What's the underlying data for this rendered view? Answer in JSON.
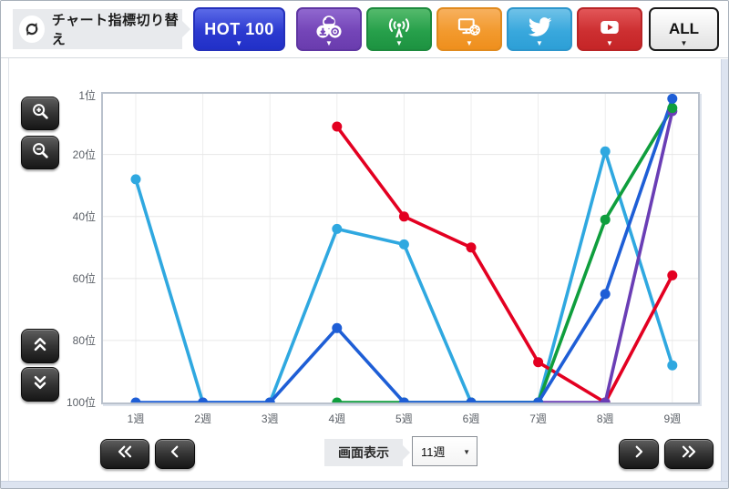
{
  "toolbar": {
    "label": "チャート指標切り替え",
    "label_icon": "switch-arrows-icon",
    "caret": "▼",
    "buttons": [
      {
        "id": "hot100",
        "label": "HOT 100",
        "color": "#2c3ad0"
      },
      {
        "id": "sales",
        "icon": "sales-bundle-icon",
        "color": "#7445b8"
      },
      {
        "id": "radio",
        "icon": "radio-tower-icon",
        "color": "#27a04b"
      },
      {
        "id": "lookup",
        "icon": "monitor-disc-icon",
        "color": "#f29a2e"
      },
      {
        "id": "twitter",
        "icon": "twitter-bird-icon",
        "color": "#39a8dd"
      },
      {
        "id": "video",
        "icon": "youtube-play-icon",
        "color": "#cd2f31"
      },
      {
        "id": "all",
        "label": "ALL",
        "color": "#eeeeee"
      }
    ]
  },
  "left_controls": {
    "zoom_in": "magnifier-plus-icon",
    "zoom_out": "magnifier-minus-icon",
    "scroll_up": "double-chevron-up-icon",
    "scroll_down": "double-chevron-down-icon"
  },
  "bottom_controls": {
    "first": "double-chevron-left-icon",
    "prev": "chevron-left-icon",
    "next": "chevron-right-icon",
    "last": "double-chevron-right-icon",
    "display_label": "画面表示",
    "display_value": "11週"
  },
  "chart_data": {
    "type": "line",
    "x_axis": "week",
    "y_axis": "chart rank (1 = best, 100 = worst)",
    "x_labels": [
      "1週",
      "2週",
      "3週",
      "4週",
      "5週",
      "6週",
      "7週",
      "8週",
      "9週"
    ],
    "y_tick_labels": [
      "1位",
      "20位",
      "40位",
      "60位",
      "80位",
      "100位"
    ],
    "y_tick_ranks": [
      1,
      20,
      40,
      60,
      80,
      100
    ],
    "ylim": [
      1,
      100
    ],
    "grid": true,
    "legend": "none",
    "series": [
      {
        "name": "sky-blue-series",
        "color": "#2fa8e0",
        "points": [
          [
            1,
            28
          ],
          [
            2,
            100
          ],
          [
            3,
            100
          ],
          [
            4,
            44
          ],
          [
            5,
            49
          ],
          [
            6,
            100
          ],
          [
            7,
            100
          ],
          [
            8,
            19
          ],
          [
            9,
            88
          ]
        ]
      },
      {
        "name": "red-series",
        "color": "#e30021",
        "points": [
          [
            4,
            11
          ],
          [
            5,
            40
          ],
          [
            6,
            50
          ],
          [
            7,
            87
          ],
          [
            8,
            100
          ],
          [
            9,
            59
          ]
        ]
      },
      {
        "name": "purple-series",
        "color": "#6a3eb5",
        "points": [
          [
            7,
            100
          ],
          [
            8,
            100
          ],
          [
            9,
            6
          ]
        ]
      },
      {
        "name": "green-series",
        "color": "#0f9e3d",
        "points": [
          [
            4,
            100
          ],
          [
            5,
            100
          ],
          [
            6,
            100
          ],
          [
            7,
            100
          ],
          [
            8,
            41
          ],
          [
            9,
            5
          ]
        ]
      },
      {
        "name": "royal-blue-series",
        "color": "#1e5ed6",
        "points": [
          [
            1,
            100
          ],
          [
            2,
            100
          ],
          [
            3,
            100
          ],
          [
            4,
            76
          ],
          [
            5,
            100
          ],
          [
            6,
            100
          ],
          [
            7,
            100
          ],
          [
            8,
            65
          ],
          [
            9,
            2
          ]
        ]
      }
    ]
  }
}
